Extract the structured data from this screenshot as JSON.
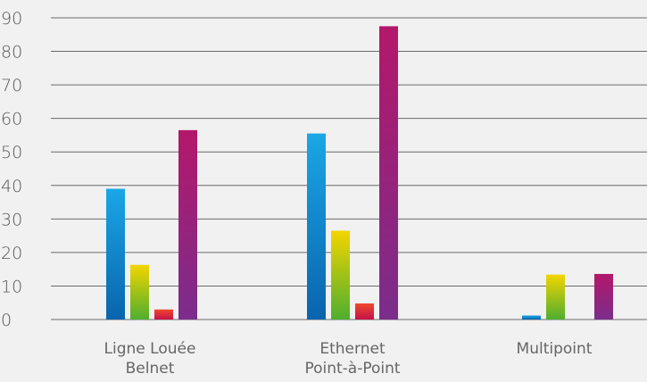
{
  "chart_data": {
    "type": "bar",
    "categories": [
      [
        "Ligne Louée",
        "Belnet"
      ],
      [
        "Ethernet",
        "Point-à-Point"
      ],
      [
        "Multipoint"
      ]
    ],
    "series": [
      {
        "color_top": "#1aa7e6",
        "color_bottom": "#0a64ad",
        "values": [
          39,
          55.5,
          1.2
        ]
      },
      {
        "color_top": "#f2d500",
        "color_bottom": "#4fae2f",
        "values": [
          16.3,
          26.5,
          13.4
        ]
      },
      {
        "color_top": "#f0482c",
        "color_bottom": "#c4124a",
        "values": [
          3,
          4.8,
          0
        ]
      },
      {
        "color_top": "#b3186a",
        "color_bottom": "#7b2d8c",
        "values": [
          56.5,
          87.5,
          13.6
        ]
      }
    ],
    "ylim": [
      0,
      90
    ],
    "yticks": [
      0,
      10,
      20,
      30,
      40,
      50,
      60,
      70,
      80,
      90
    ],
    "grid": true,
    "legend": "none"
  }
}
